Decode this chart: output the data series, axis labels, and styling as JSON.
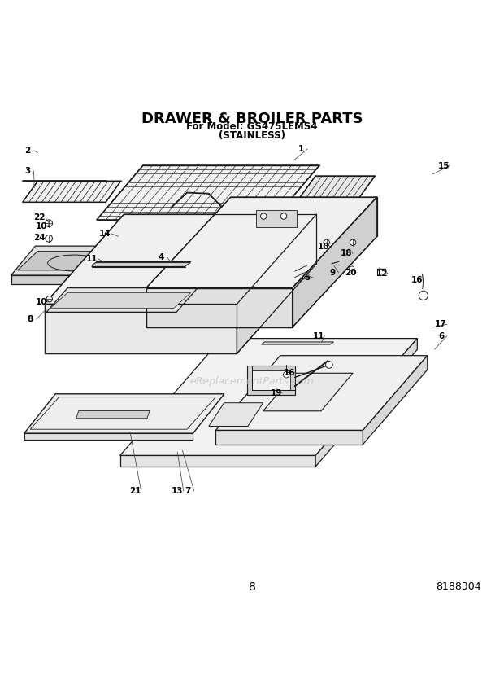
{
  "title_line1": "DRAWER & BROILER PARTS",
  "title_line2": "For Model: GS475LEMS4",
  "title_line3": "(STAINLESS)",
  "page_number": "8",
  "doc_number": "8188304",
  "bg_color": "#ffffff",
  "title_color": "#000000",
  "diagram_color": "#1a1a1a",
  "watermark_text": "eReplacementParts.com",
  "watermark_color": "#cccccc"
}
